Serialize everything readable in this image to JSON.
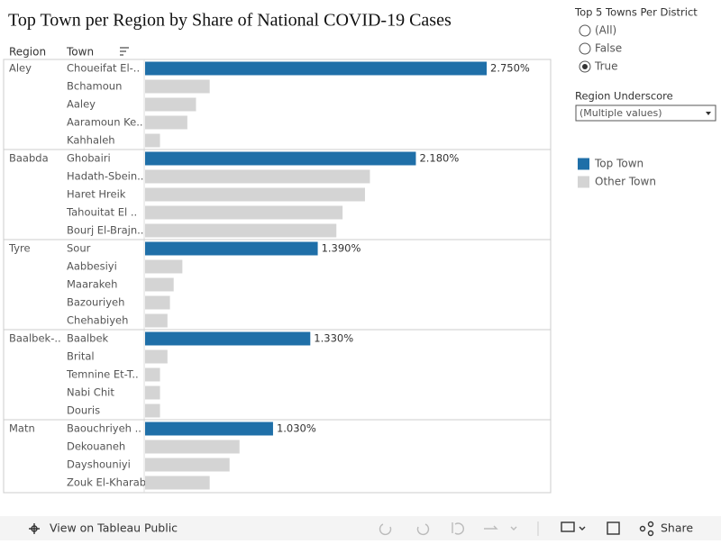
{
  "chart_data": {
    "type": "bar",
    "title": "Top Town per Region by Share of National COVID-19 Cases",
    "column_headers": [
      "Region",
      "Town"
    ],
    "series": [
      {
        "name": "Top Town",
        "color": "#1f6fa8"
      },
      {
        "name": "Other Town",
        "color": "#d4d4d4"
      }
    ],
    "groups": [
      {
        "region": "Aley",
        "towns": [
          "Choueifat El-..",
          "Bchamoun",
          "Aaley",
          "Aaramoun Ke..",
          "Kahhaleh"
        ],
        "values": [
          2.75,
          0.52,
          0.41,
          0.34,
          0.12
        ],
        "label": "2.750%"
      },
      {
        "region": "Baabda",
        "towns": [
          "Ghobairi",
          "Hadath-Sbein..",
          "Haret Hreik",
          "Tahouitat El ..",
          "Bourj El-Brajn.."
        ],
        "values": [
          2.18,
          1.81,
          1.77,
          1.59,
          1.54
        ],
        "label": "2.180%"
      },
      {
        "region": "Tyre",
        "towns": [
          "Sour",
          "Aabbesiyi",
          "Maarakeh",
          "Bazouriyeh",
          "Chehabiyeh"
        ],
        "values": [
          1.39,
          0.3,
          0.23,
          0.2,
          0.18
        ],
        "label": "1.390%"
      },
      {
        "region": "Baalbek-..",
        "towns": [
          "Baalbek",
          "Brital",
          "Temnine Et-T..",
          "Nabi Chit",
          "Douris"
        ],
        "values": [
          1.33,
          0.18,
          0.12,
          0.12,
          0.12
        ],
        "label": "1.330%"
      },
      {
        "region": "Matn",
        "towns": [
          "Baouchriyeh ..",
          "Dekouaneh",
          "Dayshouniyi",
          "Zouk El-Kharab"
        ],
        "values": [
          1.03,
          0.76,
          0.68,
          0.52
        ],
        "label": "1.030%"
      }
    ]
  },
  "filters": [
    {
      "title": "Top 5 Towns Per District",
      "options": [
        "(All)",
        "False",
        "True"
      ],
      "selected": 2
    },
    {
      "title": "Region Underscore",
      "value": "(Multiple values)"
    }
  ],
  "footer": {
    "view": "View on Tableau Public",
    "share": "Share"
  }
}
